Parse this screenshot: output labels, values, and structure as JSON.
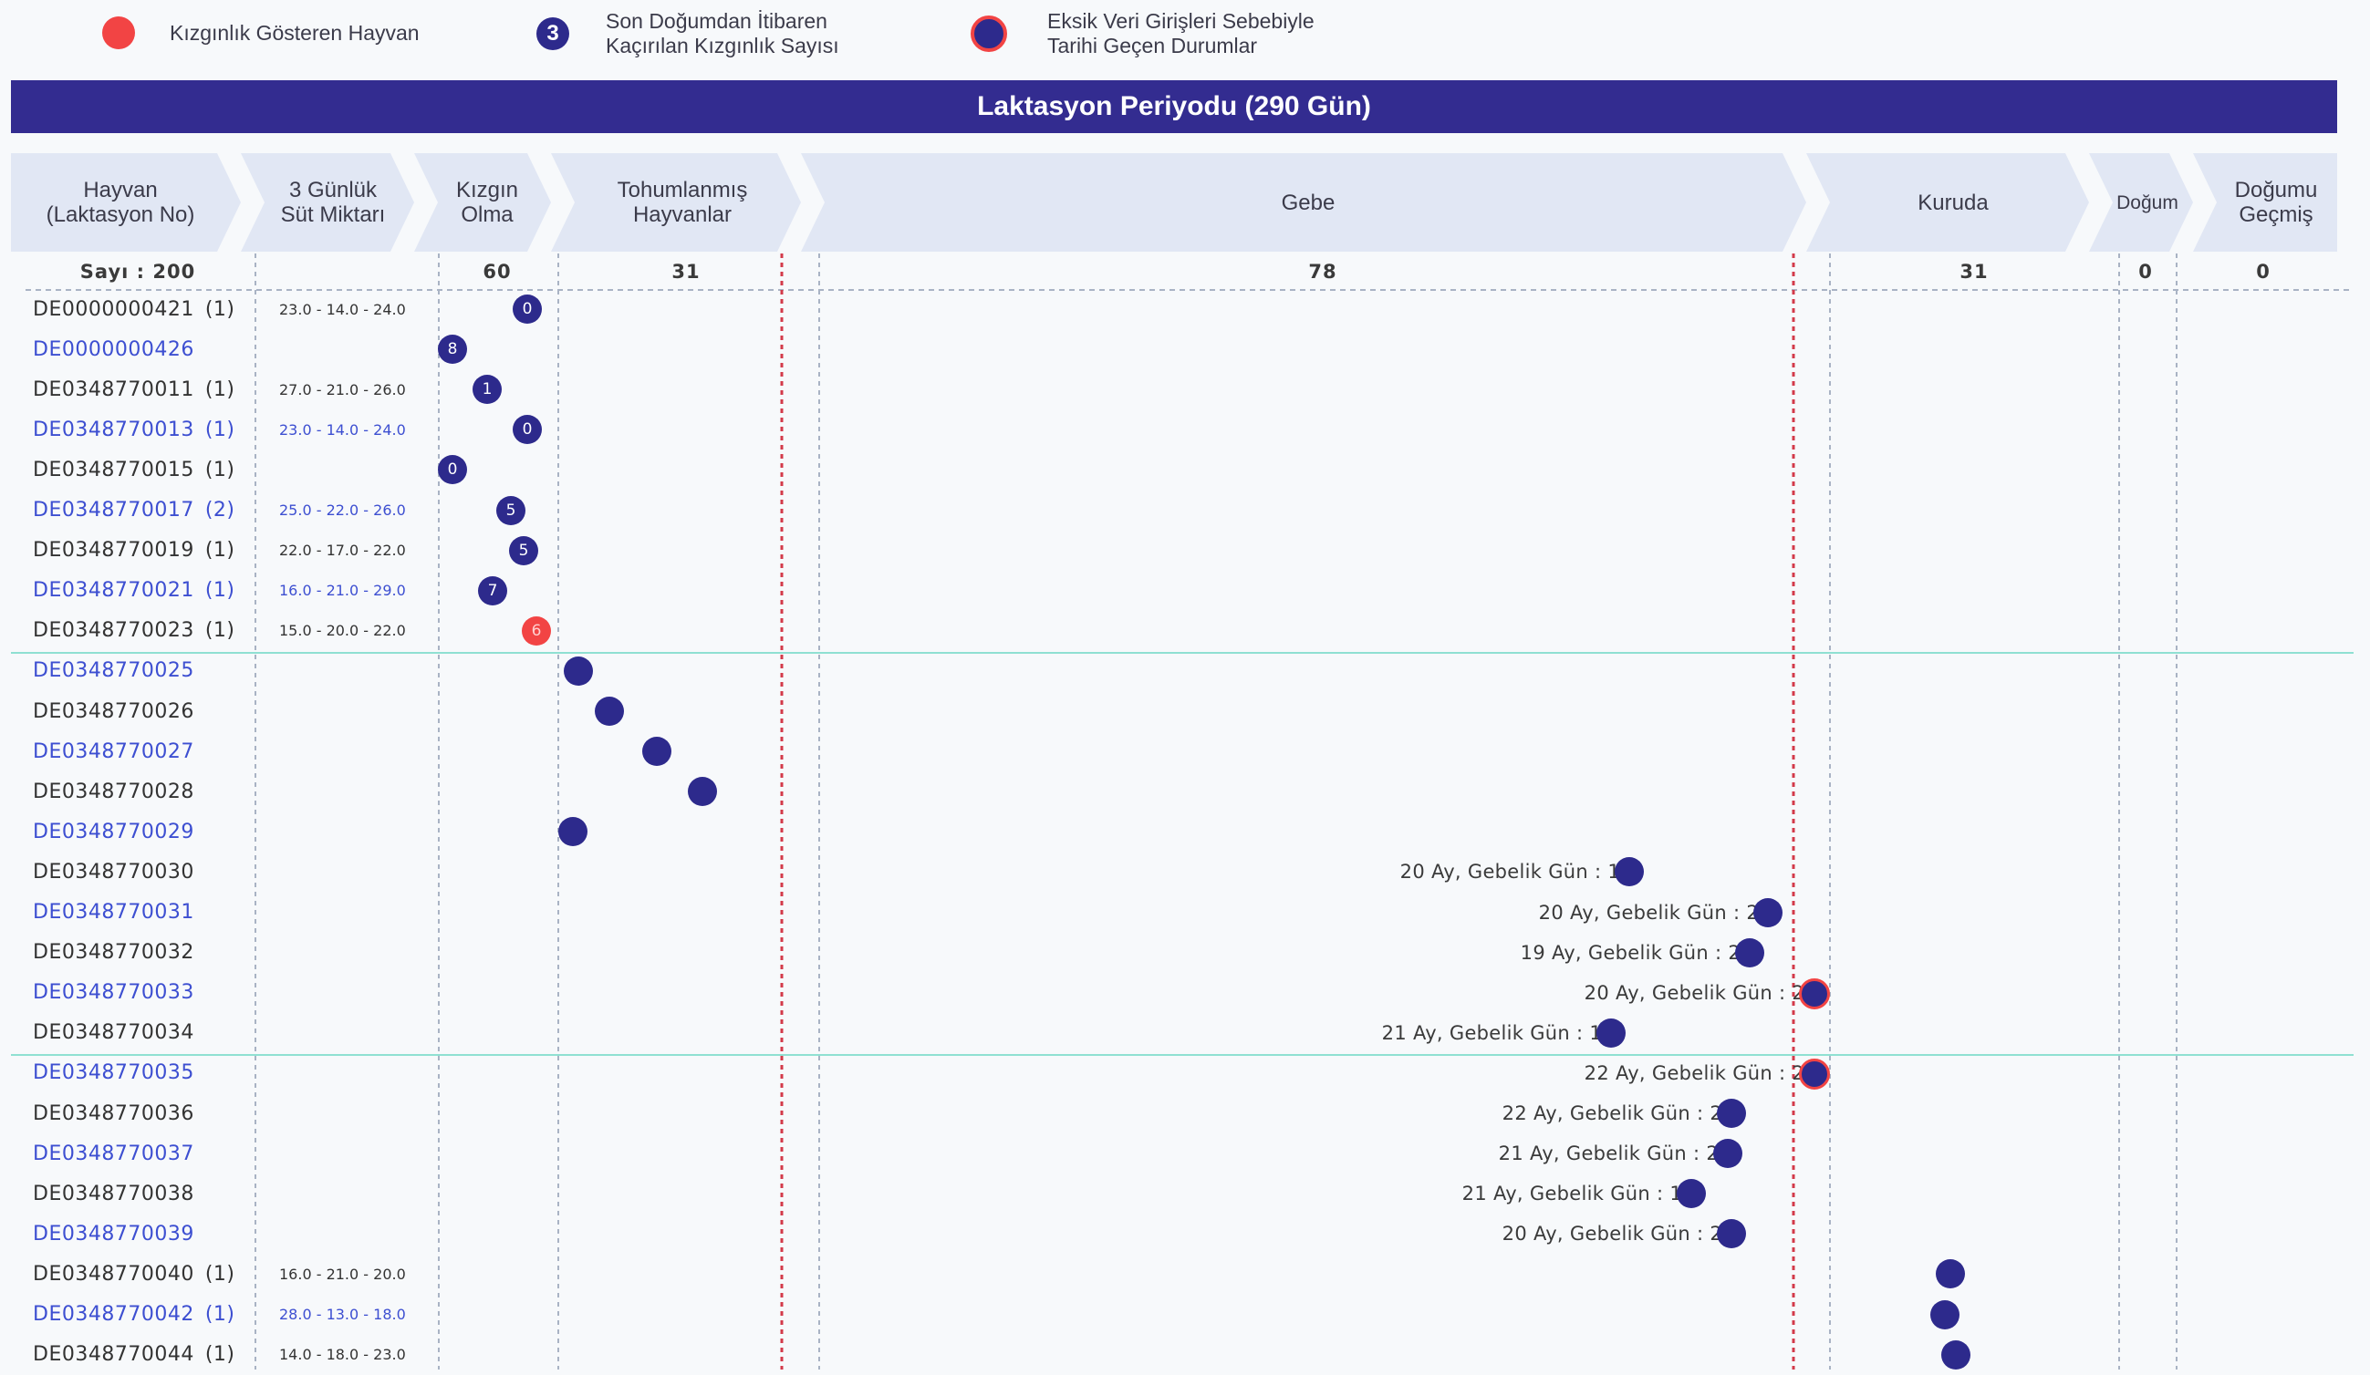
{
  "legend": {
    "estrus": "Kızgınlık Gösteren Hayvan",
    "missed_badge": "3",
    "missed_line1": "Son Doğumdan İtibaren",
    "missed_line2": "Kaçırılan Kızgınlık Sayısı",
    "overdue_line1": "Eksik Veri Girişleri Sebebiyle",
    "overdue_line2": "Tarihi Geçen Durumlar"
  },
  "title": "Laktasyon Periyodu (290 Gün)",
  "stages": {
    "animal_1": "Hayvan",
    "animal_2": "(Laktasyon No)",
    "milk_1": "3 Günlük",
    "milk_2": "Süt Miktarı",
    "heat_1": "Kızgın",
    "heat_2": "Olma",
    "insem_1": "Tohumlanmış",
    "insem_2": "Hayvanlar",
    "pregnant": "Gebe",
    "dry": "Kuruda",
    "birth": "Doğum",
    "past_1": "Doğumu",
    "past_2": "Geçmiş"
  },
  "counts": {
    "total": "Sayı : 200",
    "heat": "60",
    "insem": "31",
    "pregnant": "78",
    "dry": "31",
    "birth": "0",
    "past": "0"
  },
  "colors": {
    "marker": "#2d2a8c",
    "estrus": "#f24444",
    "header": "#332c90",
    "stage_bg": "#e1e7f4",
    "link": "#3d4fd1"
  },
  "rows": [
    {
      "id": "DE0000000421",
      "lak": "(1)",
      "milk": "23.0 - 14.0 - 24.0",
      "count": "0",
      "marker_type": "count",
      "stage": "heat",
      "blue": false,
      "preg": ""
    },
    {
      "id": "DE0000000426",
      "lak": "",
      "milk": "",
      "count": "8",
      "marker_type": "count",
      "stage": "heat",
      "blue": true,
      "preg": ""
    },
    {
      "id": "DE0348770011",
      "lak": "(1)",
      "milk": "27.0 - 21.0 - 26.0",
      "count": "1",
      "marker_type": "count",
      "stage": "heat",
      "blue": false,
      "preg": ""
    },
    {
      "id": "DE0348770013",
      "lak": "(1)",
      "milk": "23.0 - 14.0 - 24.0",
      "count": "0",
      "marker_type": "count",
      "stage": "heat",
      "blue": true,
      "preg": ""
    },
    {
      "id": "DE0348770015",
      "lak": "(1)",
      "milk": "",
      "count": "0",
      "marker_type": "count",
      "stage": "heat",
      "blue": false,
      "preg": ""
    },
    {
      "id": "DE0348770017",
      "lak": "(2)",
      "milk": "25.0 - 22.0 - 26.0",
      "count": "5",
      "marker_type": "count",
      "stage": "heat",
      "blue": true,
      "preg": ""
    },
    {
      "id": "DE0348770019",
      "lak": "(1)",
      "milk": "22.0 - 17.0 - 22.0",
      "count": "5",
      "marker_type": "count",
      "stage": "heat",
      "blue": false,
      "preg": ""
    },
    {
      "id": "DE0348770021",
      "lak": "(1)",
      "milk": "16.0 - 21.0 - 29.0",
      "count": "7",
      "marker_type": "count",
      "stage": "heat",
      "blue": true,
      "preg": ""
    },
    {
      "id": "DE0348770023",
      "lak": "(1)",
      "milk": "15.0 - 20.0 - 22.0",
      "count": "6",
      "marker_type": "estrus",
      "stage": "heat",
      "blue": false,
      "preg": ""
    },
    {
      "id": "DE0348770025",
      "lak": "",
      "milk": "",
      "count": "",
      "marker_type": "dot",
      "stage": "insem",
      "blue": true,
      "preg": ""
    },
    {
      "id": "DE0348770026",
      "lak": "",
      "milk": "",
      "count": "",
      "marker_type": "dot",
      "stage": "insem",
      "blue": false,
      "preg": ""
    },
    {
      "id": "DE0348770027",
      "lak": "",
      "milk": "",
      "count": "",
      "marker_type": "dot",
      "stage": "insem",
      "blue": true,
      "preg": ""
    },
    {
      "id": "DE0348770028",
      "lak": "",
      "milk": "",
      "count": "",
      "marker_type": "dot",
      "stage": "insem",
      "blue": false,
      "preg": ""
    },
    {
      "id": "DE0348770029",
      "lak": "",
      "milk": "",
      "count": "",
      "marker_type": "dot",
      "stage": "insem",
      "blue": true,
      "preg": ""
    },
    {
      "id": "DE0348770030",
      "lak": "",
      "milk": "",
      "count": "",
      "marker_type": "dot",
      "stage": "pregnant",
      "blue": false,
      "preg": "20 Ay, Gebelik Gün : 1"
    },
    {
      "id": "DE0348770031",
      "lak": "",
      "milk": "",
      "count": "",
      "marker_type": "dot",
      "stage": "pregnant",
      "blue": true,
      "preg": "20 Ay, Gebelik Gün : 2"
    },
    {
      "id": "DE0348770032",
      "lak": "",
      "milk": "",
      "count": "",
      "marker_type": "dot",
      "stage": "pregnant",
      "blue": false,
      "preg": "19 Ay, Gebelik Gün : 2"
    },
    {
      "id": "DE0348770033",
      "lak": "",
      "milk": "",
      "count": "",
      "marker_type": "overdue",
      "stage": "pregnant",
      "blue": true,
      "preg": "20 Ay, Gebelik Gün : 2"
    },
    {
      "id": "DE0348770034",
      "lak": "",
      "milk": "",
      "count": "",
      "marker_type": "dot",
      "stage": "pregnant",
      "blue": false,
      "preg": "21 Ay, Gebelik Gün : 1"
    },
    {
      "id": "DE0348770035",
      "lak": "",
      "milk": "",
      "count": "",
      "marker_type": "overdue",
      "stage": "pregnant",
      "blue": true,
      "preg": "22 Ay, Gebelik Gün : 2"
    },
    {
      "id": "DE0348770036",
      "lak": "",
      "milk": "",
      "count": "",
      "marker_type": "dot",
      "stage": "pregnant",
      "blue": false,
      "preg": "22 Ay, Gebelik Gün : 2"
    },
    {
      "id": "DE0348770037",
      "lak": "",
      "milk": "",
      "count": "",
      "marker_type": "dot",
      "stage": "pregnant",
      "blue": true,
      "preg": "21 Ay, Gebelik Gün : 2"
    },
    {
      "id": "DE0348770038",
      "lak": "",
      "milk": "",
      "count": "",
      "marker_type": "dot",
      "stage": "pregnant",
      "blue": false,
      "preg": "21 Ay, Gebelik Gün : 1"
    },
    {
      "id": "DE0348770039",
      "lak": "",
      "milk": "",
      "count": "",
      "marker_type": "dot",
      "stage": "pregnant",
      "blue": true,
      "preg": "20 Ay, Gebelik Gün : 2"
    },
    {
      "id": "DE0348770040",
      "lak": "(1)",
      "milk": "16.0 - 21.0 - 20.0",
      "count": "",
      "marker_type": "dot",
      "stage": "dry",
      "blue": false,
      "preg": ""
    },
    {
      "id": "DE0348770042",
      "lak": "(1)",
      "milk": "28.0 - 13.0 - 18.0",
      "count": "",
      "marker_type": "dot",
      "stage": "dry",
      "blue": true,
      "preg": ""
    },
    {
      "id": "DE0348770044",
      "lak": "(1)",
      "milk": "14.0 - 18.0 - 23.0",
      "count": "",
      "marker_type": "dot",
      "stage": "dry",
      "blue": false,
      "preg": ""
    }
  ]
}
